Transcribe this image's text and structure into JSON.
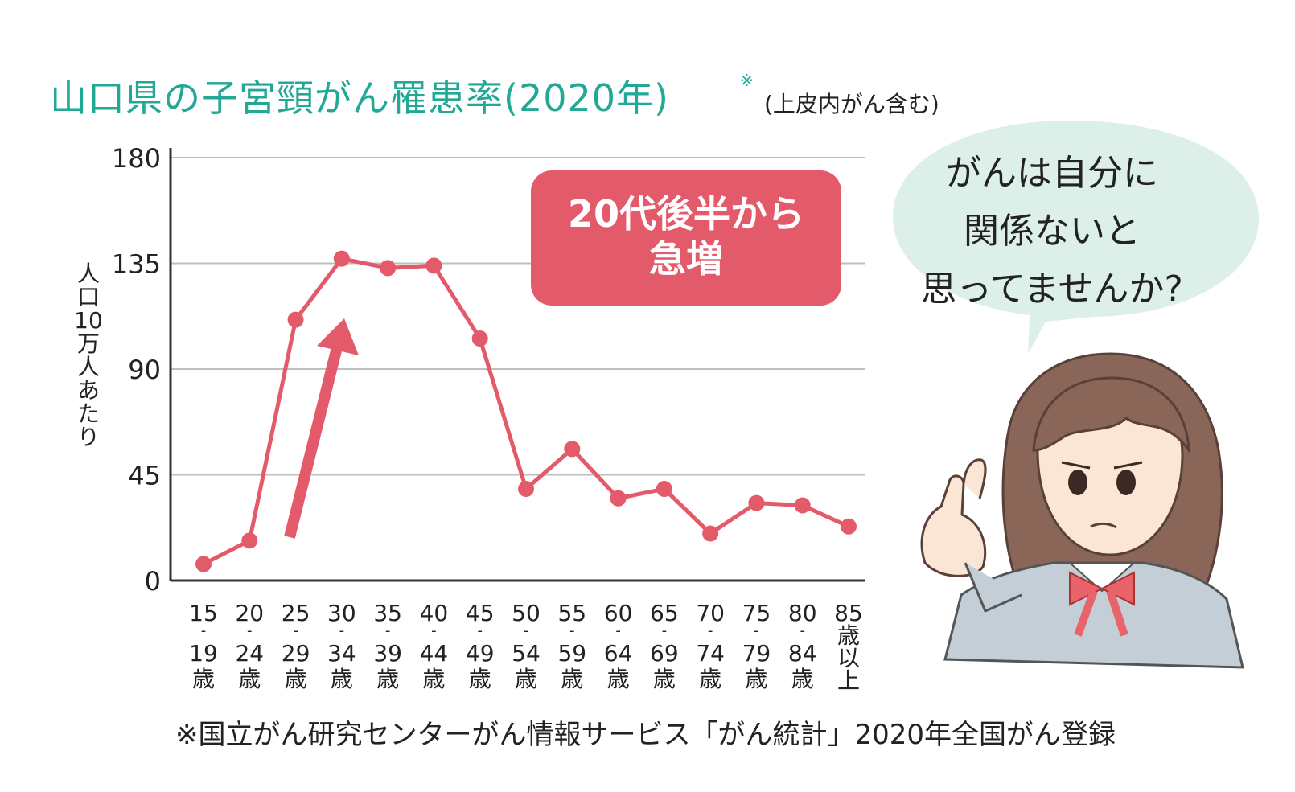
{
  "title": "山口県の子宮頸がん罹患率(2020年)",
  "title_mark": "※",
  "title_note": "(上皮内がん含む)",
  "ylabel_chars": [
    "人",
    "口",
    "10",
    "万",
    "人",
    "あ",
    "た",
    "り"
  ],
  "callout_lines": [
    "20代後半から",
    "急増"
  ],
  "speech_lines": [
    "がんは自分に",
    "関係ないと",
    "思ってませんか?"
  ],
  "footnote": "※国立がん研究センターがん情報サービス「がん統計」2020年全国がん登録",
  "colors": {
    "title": "#22a996",
    "line": "#e35a6a",
    "callout_bg": "#e35a6a",
    "bubble": "#dcefe9",
    "axis": "#333333",
    "grid": "#bfbfbf"
  },
  "illustration": {
    "icon": "thinking-schoolgirl-pointing-icon"
  },
  "chart_data": {
    "type": "line",
    "title": "",
    "xlabel": "",
    "ylabel": "人口10万人あたり",
    "ylim": [
      0,
      180
    ],
    "yticks": [
      "0",
      "45",
      "90",
      "135",
      "180"
    ],
    "grid": true,
    "categories": [
      [
        "15",
        "19",
        "歳"
      ],
      [
        "20",
        "24",
        "歳"
      ],
      [
        "25",
        "29",
        "歳"
      ],
      [
        "30",
        "34",
        "歳"
      ],
      [
        "35",
        "39",
        "歳"
      ],
      [
        "40",
        "44",
        "歳"
      ],
      [
        "45",
        "49",
        "歳"
      ],
      [
        "50",
        "54",
        "歳"
      ],
      [
        "55",
        "59",
        "歳"
      ],
      [
        "60",
        "64",
        "歳"
      ],
      [
        "65",
        "69",
        "歳"
      ],
      [
        "70",
        "74",
        "歳"
      ],
      [
        "75",
        "79",
        "歳"
      ],
      [
        "80",
        "84",
        "歳"
      ],
      [
        "85",
        "歳",
        "以",
        "上"
      ]
    ],
    "series": [
      {
        "values": [
          7,
          17,
          111,
          137,
          133,
          134,
          103,
          39,
          56,
          35,
          39,
          20,
          33,
          32,
          23
        ]
      }
    ]
  }
}
